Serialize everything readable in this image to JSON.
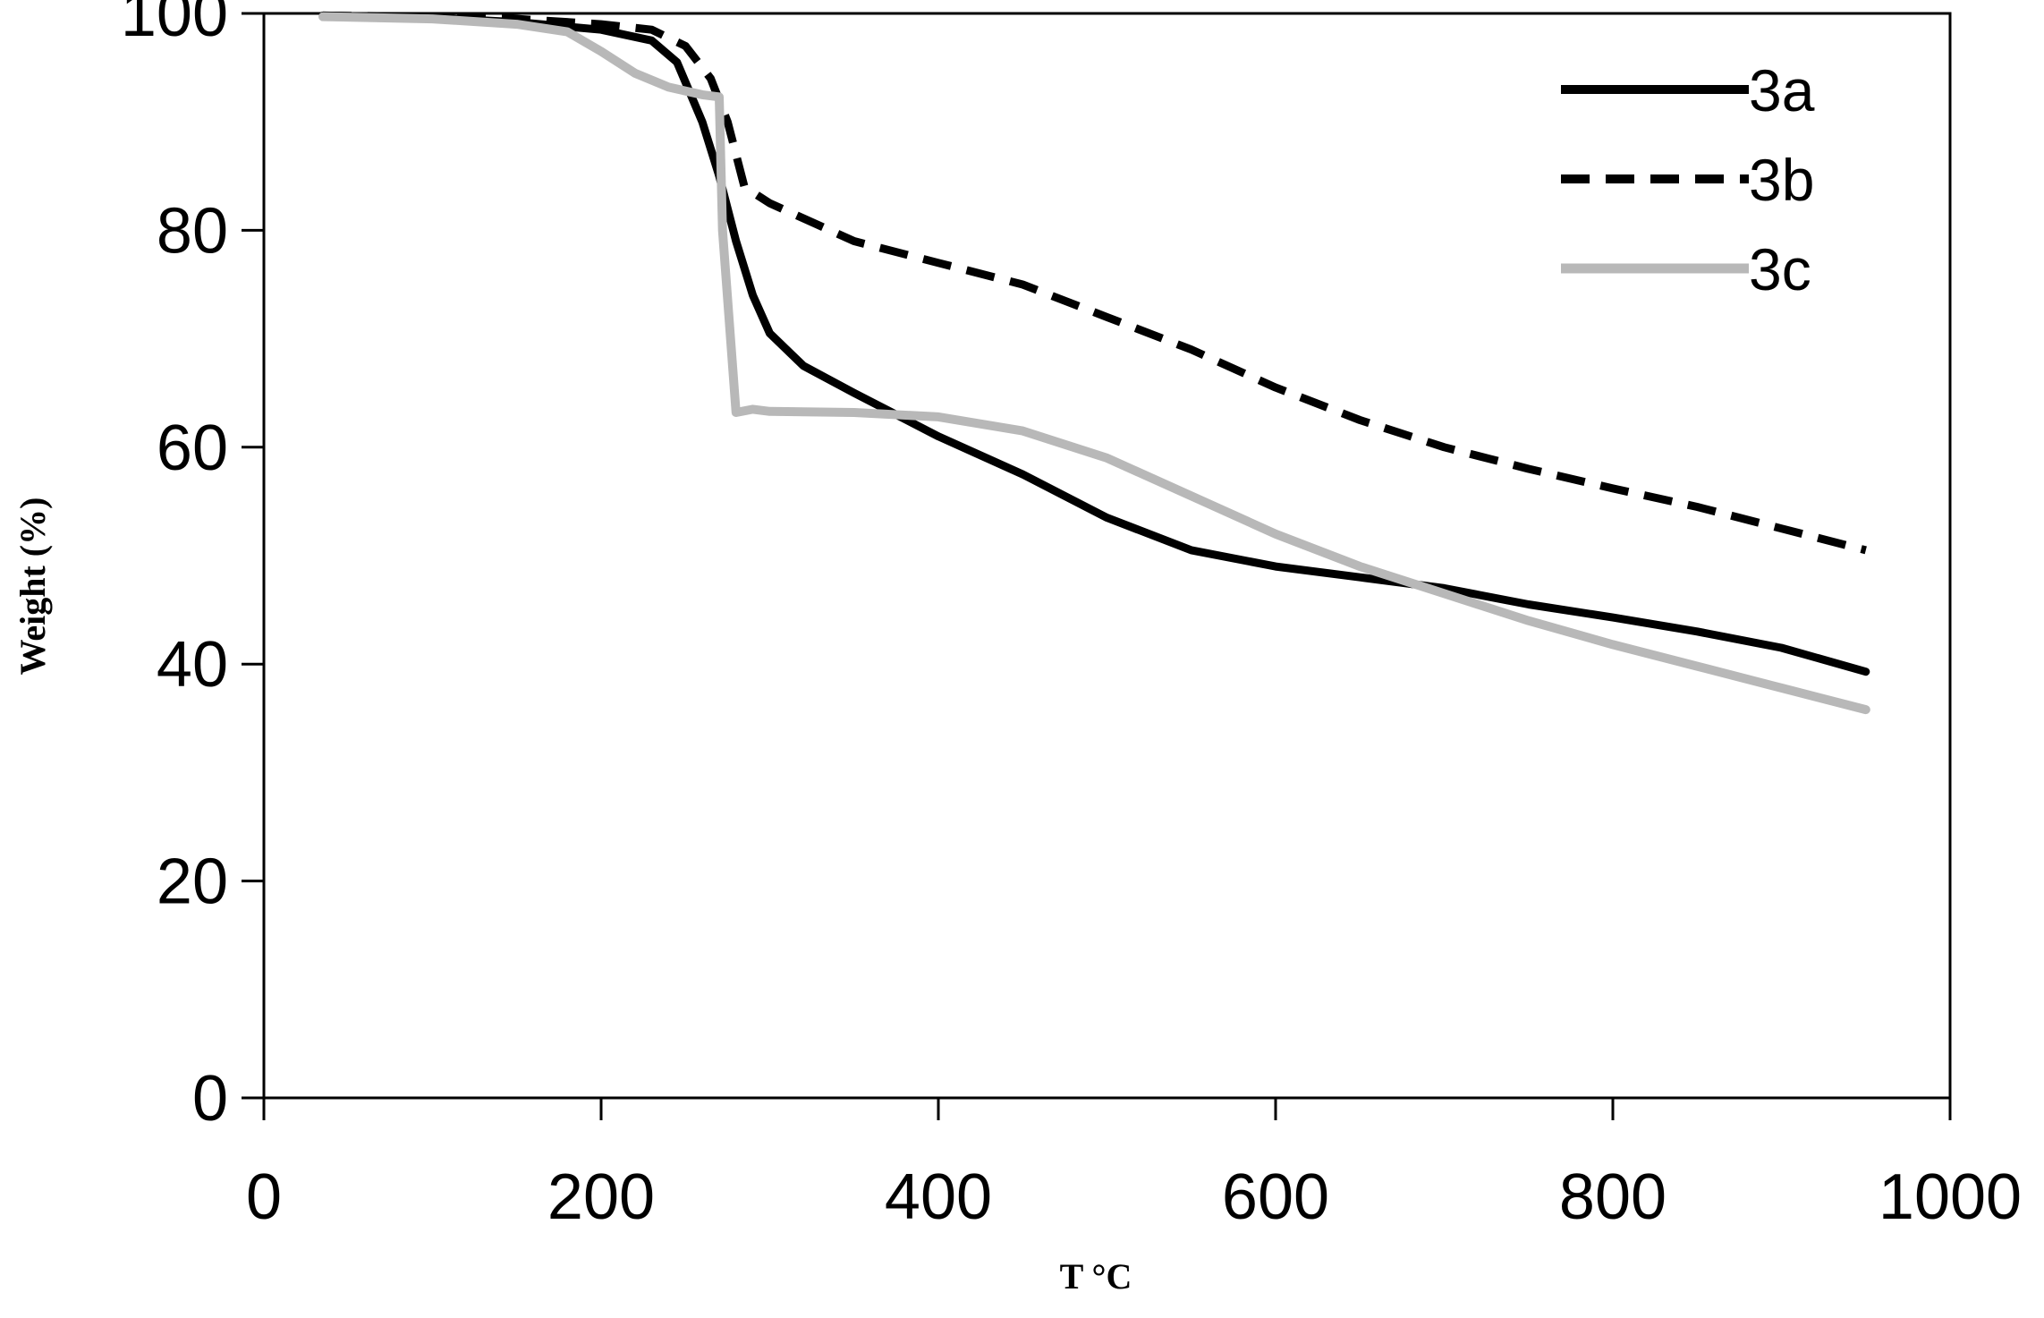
{
  "chart_data": {
    "type": "line",
    "title": "",
    "xlabel": "T °C",
    "ylabel": "Weight (%)",
    "xlim": [
      0,
      1000
    ],
    "ylim": [
      0,
      100
    ],
    "x_ticks": [
      "0",
      "200",
      "400",
      "600",
      "800",
      "1000"
    ],
    "y_ticks": [
      "0",
      "20",
      "40",
      "60",
      "80",
      "100"
    ],
    "grid": false,
    "legend_position": "top-right",
    "series": [
      {
        "name": "3a",
        "color": "#000000",
        "style": "solid",
        "x": [
          35,
          100,
          150,
          200,
          230,
          245,
          260,
          270,
          280,
          290,
          300,
          320,
          350,
          400,
          450,
          500,
          550,
          600,
          650,
          700,
          750,
          800,
          850,
          900,
          950
        ],
        "y": [
          99.8,
          99.6,
          99.2,
          98.5,
          97.5,
          95.5,
          90,
          85,
          79,
          74,
          70.5,
          67.5,
          65,
          61,
          57.5,
          53.5,
          50.5,
          49,
          48,
          47,
          45.5,
          44.3,
          43,
          41.5,
          39.3
        ]
      },
      {
        "name": "3b",
        "color": "#000000",
        "style": "dashed",
        "x": [
          35,
          100,
          150,
          200,
          230,
          250,
          265,
          275,
          285,
          300,
          350,
          400,
          450,
          500,
          550,
          600,
          650,
          700,
          750,
          800,
          850,
          900,
          950
        ],
        "y": [
          99.8,
          99.7,
          99.5,
          99,
          98.5,
          97,
          94,
          90,
          84,
          82.5,
          79,
          77,
          75,
          72,
          69,
          65.5,
          62.5,
          60,
          58,
          56.2,
          54.5,
          52.5,
          50.5
        ]
      },
      {
        "name": "3c",
        "color": "#b8b8b8",
        "style": "solid",
        "x": [
          35,
          100,
          150,
          180,
          200,
          220,
          240,
          260,
          270,
          272,
          280,
          290,
          300,
          350,
          400,
          450,
          500,
          550,
          600,
          650,
          700,
          750,
          800,
          850,
          900,
          950
        ],
        "y": [
          99.7,
          99.5,
          99,
          98.3,
          96.5,
          94.5,
          93.2,
          92.5,
          92.3,
          80,
          63.2,
          63.5,
          63.3,
          63.2,
          62.8,
          61.5,
          59,
          55.5,
          52,
          49,
          46.5,
          44,
          41.8,
          39.8,
          37.8,
          35.8
        ]
      }
    ]
  }
}
